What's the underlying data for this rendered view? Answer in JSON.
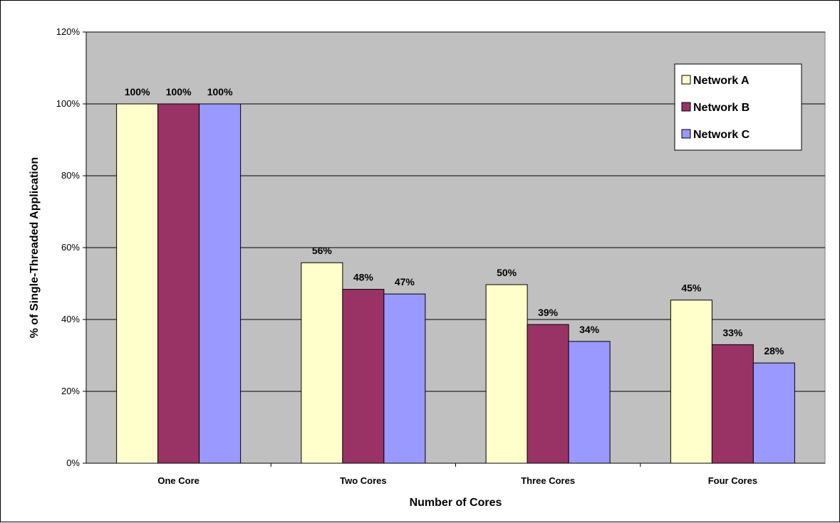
{
  "chart_data": {
    "type": "bar",
    "title": "",
    "xlabel": "Number of Cores",
    "ylabel": "% of Single-Threaded Application",
    "categories": [
      "One Core",
      "Two Cores",
      "Three Cores",
      "Four Cores"
    ],
    "ylim": [
      0,
      120
    ],
    "yticks": [
      0,
      20,
      40,
      60,
      80,
      100,
      120
    ],
    "ytick_labels": [
      "0%",
      "20%",
      "40%",
      "60%",
      "80%",
      "100%",
      "120%"
    ],
    "grid": "horizontal",
    "legend_position": "top-right",
    "plot_background": "#c0c0c0",
    "series": [
      {
        "name": "Network A",
        "color": "#ffffcc",
        "values": [
          100,
          55.8,
          49.7,
          45.4
        ],
        "labels": [
          "100%",
          "56%",
          "50%",
          "45%"
        ]
      },
      {
        "name": "Network B",
        "color": "#993366",
        "values": [
          100,
          48.4,
          38.6,
          33.0
        ],
        "labels": [
          "100%",
          "48%",
          "39%",
          "33%"
        ]
      },
      {
        "name": "Network C",
        "color": "#9999ff",
        "values": [
          100,
          47.1,
          33.9,
          27.9
        ],
        "labels": [
          "100%",
          "47%",
          "34%",
          "28%"
        ]
      }
    ]
  }
}
